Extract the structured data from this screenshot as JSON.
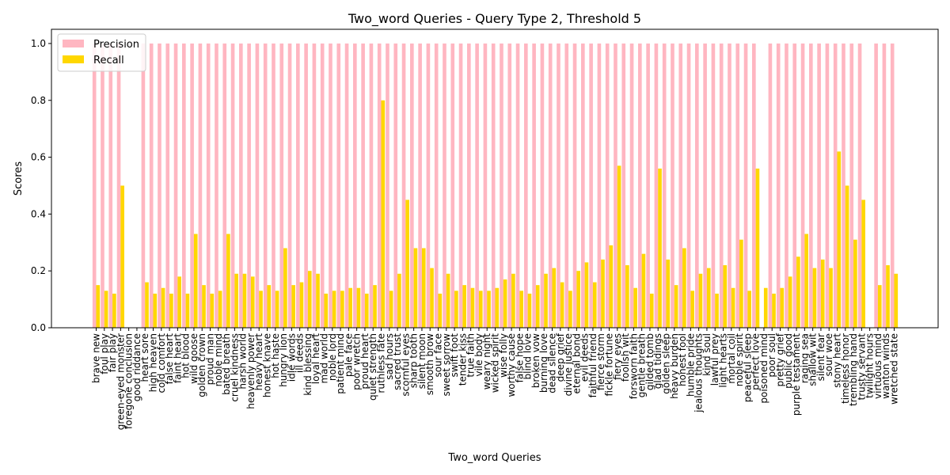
{
  "chart_data": {
    "type": "bar",
    "title": "Two_word Queries - Query Type 2, Threshold 5",
    "xlabel": "Two_word Queries",
    "ylabel": "Scores",
    "ylim": [
      0,
      1.05
    ],
    "yticks": [
      "0.0",
      "0.2",
      "0.4",
      "0.6",
      "0.8",
      "1.0"
    ],
    "grid": false,
    "legend_position": "top-left",
    "categories": [
      "brave new",
      "foul play",
      "fair play",
      "green-eyed monster",
      "foregone conclusion",
      "good riddance",
      "heart sore",
      "high heaven",
      "cold comfort",
      "false heart",
      "faint heart",
      "hot blood",
      "wild goose",
      "golden crown",
      "proud man",
      "noble mind",
      "bated breath",
      "cruel kindness",
      "harsh world",
      "heavenly power",
      "heavy heart",
      "honest knave",
      "hot haste",
      "hungry lion",
      "idle words",
      "ill deeds",
      "kind blessing",
      "loyal heart",
      "mad world",
      "noble lord",
      "patient mind",
      "pale face",
      "poor wretch",
      "proud heart",
      "quiet strength",
      "ruthless fate",
      "sad hours",
      "sacred trust",
      "scornful eyes",
      "sharp tooth",
      "silent moon",
      "smooth brow",
      "sour face",
      "sweet sorrow",
      "swift foot",
      "tender kiss",
      "true faith",
      "vile body",
      "weary night",
      "wicked spirit",
      "wise folly",
      "worthy cause",
      "false hope",
      "blind love",
      "broken vow",
      "burning love",
      "dead silence",
      "deep grief",
      "divine justice",
      "eternal bond",
      "evil deeds",
      "faithful friend",
      "fierce storm",
      "fickle fortune",
      "fiery eyes",
      "foolish wit",
      "forsworn faith",
      "gentle breath",
      "gilded tomb",
      "glad tidings",
      "golden sleep",
      "heavy burden",
      "honest fool",
      "humble pride",
      "jealous thoughts",
      "kind soul",
      "lawful prey",
      "light hearts",
      "mortal coil",
      "noble spirit",
      "peaceful sleep",
      "perfect love",
      "poisoned mind",
      "poor soul",
      "pretty grief",
      "public good",
      "purple testament",
      "raging sea",
      "shallow wit",
      "silent fear",
      "sour woe",
      "stony heart",
      "timeless honor",
      "trembling hand",
      "trusty servant",
      "twilight hours",
      "virtuous mind",
      "wanton winds",
      "wretched state"
    ],
    "series": [
      {
        "name": "Precision",
        "color": "#ffb6c1",
        "values": [
          1,
          1,
          1,
          1,
          0,
          0,
          1,
          1,
          1,
          1,
          1,
          1,
          1,
          1,
          1,
          1,
          1,
          1,
          1,
          1,
          1,
          1,
          1,
          1,
          1,
          1,
          1,
          1,
          1,
          1,
          1,
          1,
          1,
          1,
          1,
          1,
          1,
          1,
          1,
          1,
          1,
          1,
          1,
          1,
          1,
          1,
          1,
          1,
          1,
          1,
          1,
          1,
          1,
          1,
          1,
          1,
          1,
          1,
          1,
          1,
          1,
          1,
          1,
          1,
          1,
          1,
          1,
          1,
          1,
          1,
          1,
          1,
          1,
          1,
          1,
          1,
          1,
          1,
          1,
          1,
          1,
          1,
          0,
          1,
          1,
          1,
          1,
          1,
          1,
          1,
          1,
          1,
          1,
          1,
          1,
          0,
          1,
          1,
          1
        ]
      },
      {
        "name": "Recall",
        "color": "#ffd700",
        "values": [
          0.15,
          0.13,
          0.12,
          0.5,
          0,
          0,
          0.16,
          0.12,
          0.14,
          0.12,
          0.18,
          0.12,
          0.33,
          0.15,
          0.12,
          0.13,
          0.33,
          0.19,
          0.19,
          0.18,
          0.13,
          0.15,
          0.13,
          0.28,
          0.15,
          0.16,
          0.2,
          0.19,
          0.12,
          0.13,
          0.13,
          0.14,
          0.14,
          0.12,
          0.15,
          0.8,
          0.13,
          0.19,
          0.45,
          0.28,
          0.28,
          0.21,
          0.12,
          0.19,
          0.13,
          0.15,
          0.14,
          0.13,
          0.13,
          0.14,
          0.17,
          0.19,
          0.13,
          0.12,
          0.15,
          0.19,
          0.21,
          0.16,
          0.13,
          0.2,
          0.23,
          0.16,
          0.24,
          0.29,
          0.57,
          0.22,
          0.14,
          0.26,
          0.12,
          0.56,
          0.24,
          0.15,
          0.28,
          0.13,
          0.19,
          0.21,
          0.12,
          0.22,
          0.14,
          0.31,
          0.13,
          0.56,
          0.14,
          0.12,
          0.14,
          0.18,
          0.25,
          0.33,
          0.21,
          0.24,
          0.21,
          0.62,
          0.5,
          0.31,
          0.45,
          0,
          0.15,
          0.22,
          0.19
        ]
      }
    ]
  }
}
